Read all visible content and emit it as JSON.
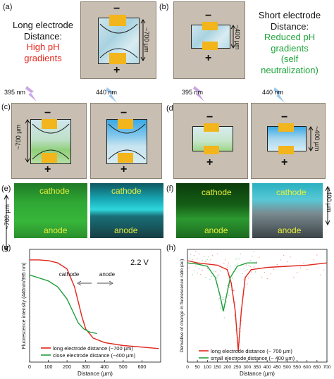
{
  "panels": {
    "a": "(a)",
    "b": "(b)",
    "c": "(c)",
    "d": "(d)",
    "e": "(e)",
    "f": "(f)",
    "g": "(g)",
    "h": "(h)"
  },
  "panel_a": {
    "line1": "Long electrode",
    "line2": "Distance:",
    "line3": "High pH",
    "line4": "gradients",
    "distance": "~700 µm",
    "minus": "−",
    "plus": "+"
  },
  "panel_b": {
    "line1": "Short electrode",
    "line2": "Distance:",
    "line3": "Reduced pH",
    "line4": "gradients",
    "line5": "(self",
    "line6": "neutralization)",
    "distance": "~400 µm",
    "minus": "−",
    "plus": "+"
  },
  "panel_c": {
    "wl_left": "395 nm",
    "wl_right": "440 nm",
    "distance": "~700 µm",
    "minus": "−",
    "plus": "+"
  },
  "panel_d": {
    "wl_left": "395 nm",
    "wl_right": "440 nm",
    "distance": "~400 µm",
    "minus": "−",
    "plus": "+"
  },
  "panel_e": {
    "cathode": "cathode",
    "anode": "anode",
    "distance": "~700 µm"
  },
  "panel_f": {
    "cathode": "cathode",
    "anode": "anode",
    "distance": "~400 µm"
  },
  "colors": {
    "red_text": "#e3261c",
    "green_text": "#1fa53b",
    "red_line": "#e0261c",
    "green_line": "#1f9e3a"
  },
  "chart_data": [
    {
      "type": "line",
      "xlabel": "Distance (µm)",
      "ylabel": "Fluorescence intensity (440nm/395 nm)",
      "xlim": [
        0,
        700
      ],
      "xticks": [
        0,
        100,
        200,
        300,
        400,
        500,
        600
      ],
      "voltage": "2.2 V",
      "annotation_cathode": "cathode",
      "annotation_anode": "anode",
      "series": [
        {
          "name": "long electrode distance (~700 µm)",
          "color": "#e0261c",
          "x": [
            0,
            50,
            100,
            150,
            200,
            240,
            260,
            280,
            300,
            340,
            400,
            500,
            600,
            690
          ],
          "y": [
            0.98,
            0.98,
            0.975,
            0.96,
            0.92,
            0.8,
            0.7,
            0.6,
            0.52,
            0.46,
            0.43,
            0.41,
            0.4,
            0.39
          ]
        },
        {
          "name": "close electrode distance (~400 µm)",
          "color": "#1f9e3a",
          "x": [
            0,
            50,
            100,
            150,
            200,
            230,
            260,
            290,
            320,
            360
          ],
          "y": [
            0.88,
            0.86,
            0.84,
            0.8,
            0.72,
            0.64,
            0.56,
            0.52,
            0.5,
            0.49
          ]
        }
      ]
    },
    {
      "type": "line",
      "xlabel": "Distance (µm)",
      "ylabel": "Derivative of change in fluorescence ratio (au)",
      "xlim": [
        0,
        700
      ],
      "xticks": [
        0,
        50,
        100,
        150,
        200,
        250,
        300,
        350,
        400,
        450,
        500,
        550,
        600,
        650,
        700
      ],
      "series": [
        {
          "name": "long electrode distance (~ 700 µm)",
          "color": "#e0261c",
          "x": [
            0,
            50,
            100,
            150,
            200,
            220,
            240,
            255,
            270,
            290,
            320,
            400,
            500,
            600,
            700
          ],
          "y": [
            0.9,
            0.88,
            0.87,
            0.86,
            0.82,
            0.7,
            0.45,
            0.1,
            0.45,
            0.75,
            0.82,
            0.84,
            0.85,
            0.86,
            0.88
          ]
        },
        {
          "name": "small electrode distance (~ 400 µm)",
          "color": "#1f9e3a",
          "x": [
            0,
            50,
            100,
            140,
            165,
            180,
            195,
            215,
            250,
            300,
            350
          ],
          "y": [
            0.88,
            0.87,
            0.85,
            0.75,
            0.58,
            0.45,
            0.58,
            0.75,
            0.85,
            0.88,
            0.88
          ]
        }
      ]
    }
  ]
}
